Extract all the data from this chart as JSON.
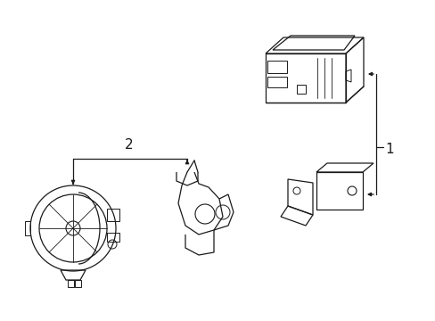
{
  "bg_color": "#ffffff",
  "line_color": "#1a1a1a",
  "fig_width": 4.89,
  "fig_height": 3.6,
  "dpi": 100,
  "label1": "1",
  "label2": "2"
}
